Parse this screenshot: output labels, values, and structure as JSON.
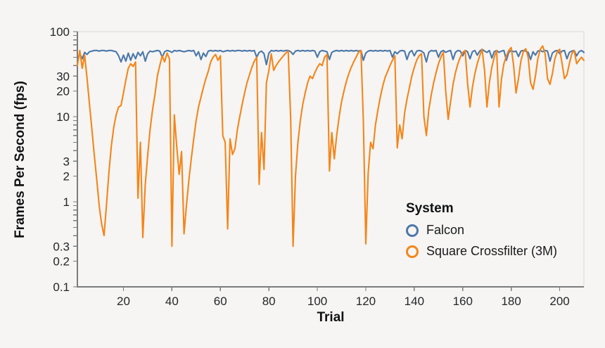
{
  "colors": {
    "background": "#f6f5f4",
    "axis_domain": "#7c7c7c",
    "plot_border": "#d9d9d8",
    "tick_label": "#262626",
    "falcon_blue": "#4c78a8",
    "crossfilter_orange": "#f58518"
  },
  "chart_data": {
    "type": "line",
    "title": "",
    "xlabel": "Trial",
    "ylabel": "Frames Per Second (fps)",
    "legend": {
      "title": "System",
      "position": "inside-right"
    },
    "x_axis": {
      "scale": "linear",
      "domain": [
        1,
        210
      ],
      "ticks": [
        20,
        40,
        60,
        80,
        100,
        120,
        140,
        160,
        180,
        200
      ],
      "grid": false
    },
    "y_axis": {
      "scale": "log",
      "domain": [
        0.1,
        100
      ],
      "labeled_ticks": [
        100,
        30,
        20,
        10,
        3,
        2,
        1,
        0.3,
        0.2,
        0.1
      ],
      "grid": false
    },
    "x_start": 1,
    "series": [
      {
        "name": "Falcon",
        "color": "#4c78a8",
        "values": [
          46,
          55,
          48,
          57,
          54,
          58,
          59,
          60,
          60,
          59,
          60,
          60,
          59,
          60,
          60,
          59,
          58,
          52,
          44,
          53,
          45,
          56,
          46,
          55,
          48,
          57,
          52,
          58,
          45,
          55,
          59,
          58,
          59,
          60,
          59,
          50,
          58,
          60,
          59,
          57,
          60,
          59,
          60,
          59,
          58,
          59,
          60,
          59,
          60,
          52,
          58,
          47,
          56,
          51,
          59,
          60,
          59,
          60,
          59,
          60,
          58,
          59,
          60,
          59,
          60,
          59,
          60,
          60,
          59,
          60,
          59,
          60,
          59,
          60,
          50,
          57,
          59,
          55,
          41,
          56,
          60,
          59,
          60,
          59,
          60,
          59,
          60,
          60,
          58,
          54,
          59,
          60,
          59,
          60,
          59,
          60,
          59,
          60,
          59,
          50,
          58,
          60,
          59,
          58,
          47,
          57,
          59,
          60,
          59,
          60,
          59,
          60,
          59,
          60,
          59,
          60,
          59,
          60,
          46,
          56,
          59,
          60,
          59,
          60,
          59,
          60,
          59,
          60,
          59,
          60,
          50,
          58,
          55,
          59,
          60,
          59,
          47,
          57,
          60,
          52,
          59,
          60,
          59,
          56,
          44,
          57,
          60,
          59,
          60,
          50,
          58,
          60,
          57,
          59,
          60,
          47,
          57,
          60,
          59,
          52,
          60,
          58,
          48,
          58,
          60,
          53,
          59,
          62,
          59,
          57,
          60,
          49,
          58,
          60,
          57,
          59,
          60,
          46,
          57,
          60,
          58,
          59,
          51,
          59,
          60,
          59,
          57,
          47,
          58,
          53,
          59,
          60,
          58,
          60,
          59,
          45,
          56,
          59,
          60,
          55,
          59,
          60,
          48,
          57,
          59,
          60,
          52,
          58,
          60,
          57
        ]
      },
      {
        "name": "Square Crossfilter (3M)",
        "color": "#f58518",
        "values": [
          40,
          60,
          37,
          53,
          28,
          14,
          7,
          3.5,
          1.8,
          0.9,
          0.55,
          0.4,
          0.9,
          2.2,
          4.5,
          7.5,
          10.5,
          13,
          13.5,
          19,
          27,
          37,
          42,
          39,
          44,
          1.1,
          5,
          0.38,
          1.6,
          3.5,
          7,
          12,
          18,
          30,
          40,
          52,
          44,
          56,
          48,
          0.3,
          10.5,
          4.5,
          2.1,
          3.9,
          0.42,
          0.9,
          1.8,
          3.2,
          5.5,
          9,
          13,
          17,
          22,
          28,
          34,
          44,
          50,
          54,
          46,
          52,
          6,
          5,
          0.48,
          5.5,
          3.6,
          4.2,
          7,
          10,
          14,
          19,
          25,
          31,
          38,
          45,
          50,
          1.6,
          6.5,
          2.4,
          25,
          35,
          55,
          35,
          40,
          44,
          48,
          52,
          56,
          59,
          9.5,
          0.3,
          2,
          5,
          9,
          14,
          19,
          25,
          30,
          28,
          33,
          38,
          42,
          40,
          50,
          54,
          2.3,
          6.5,
          3.2,
          6,
          10,
          15,
          20,
          26,
          32,
          38,
          44,
          50,
          57,
          60,
          9,
          0.32,
          2.2,
          5,
          4.2,
          8,
          12,
          17,
          23,
          29,
          34,
          40,
          46,
          52,
          4.3,
          8,
          5.5,
          11,
          16,
          22,
          30,
          38,
          46,
          52,
          55,
          10,
          6,
          12,
          18,
          25,
          33,
          42,
          50,
          57,
          20,
          9.3,
          15,
          24,
          33,
          42,
          50,
          57,
          60,
          25,
          13,
          22,
          32,
          42,
          52,
          62,
          35,
          13,
          25,
          38,
          50,
          60,
          13,
          28,
          42,
          52,
          60,
          65,
          40,
          19,
          28,
          45,
          58,
          63,
          50,
          25,
          21,
          30,
          48,
          62,
          68,
          55,
          28,
          24,
          32,
          48,
          58,
          62,
          42,
          28,
          31,
          42,
          55,
          60,
          42,
          46,
          50,
          46
        ]
      }
    ]
  }
}
